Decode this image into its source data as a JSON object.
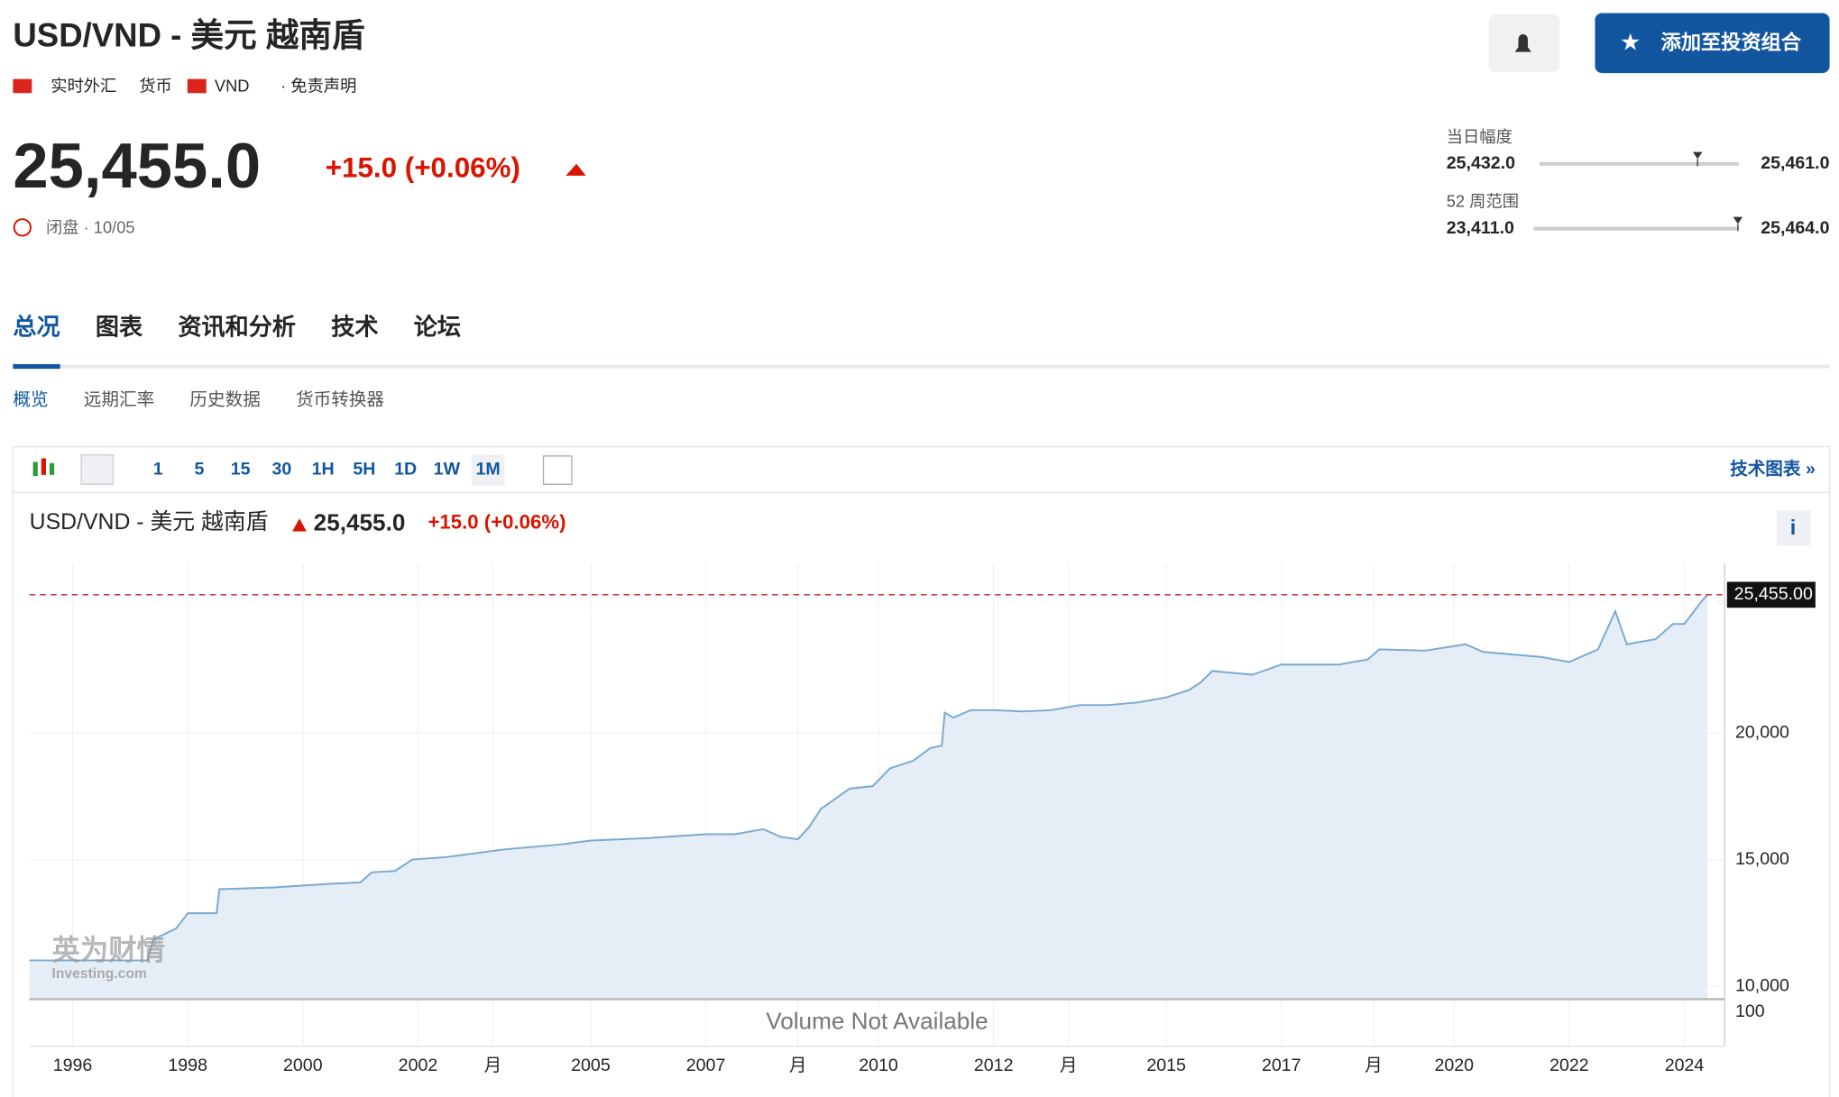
{
  "header": {
    "title": "USD/VND - 美元 越南盾",
    "meta": [
      "实时外汇",
      "货币",
      "VND",
      "· 免责声明"
    ],
    "add_button": "添加至投资组合"
  },
  "quote": {
    "price": {
      "value": 25455,
      "label": "25,455.0"
    },
    "change": "+15.0 (+0.06%)",
    "status": "闭盘 · 10/05"
  },
  "ranges": [
    {
      "label": "当日幅度",
      "low": {
        "value": 25432,
        "label": "25,432.0"
      },
      "high": {
        "value": 25461,
        "label": "25,461.0"
      }
    },
    {
      "label": "52 周范围",
      "low": {
        "value": 23411,
        "label": "23,411.0"
      },
      "high": {
        "value": 25464,
        "label": "25,464.0"
      }
    }
  ],
  "tabs": [
    "总况",
    "图表",
    "资讯和分析",
    "技术",
    "论坛"
  ],
  "subtabs": [
    "概览",
    "远期汇率",
    "历史数据",
    "货币转换器"
  ],
  "toolbar": {
    "intervals": [
      "1",
      "5",
      "15",
      "30",
      "1H",
      "5H",
      "1D",
      "1W",
      "1M"
    ],
    "link": "技术图表 »"
  },
  "chart_data": {
    "type": "line",
    "title": "USD/VND - 美元 越南盾",
    "price": "25,455.0",
    "change": "+15.0 (+0.06%)",
    "last": {
      "value": 25455,
      "label": "25,455.00"
    },
    "volume_tick": "100",
    "volume_note": "Volume Not Available",
    "watermark": [
      "英为财情",
      "Investing.com"
    ],
    "color": "#7aa9d0",
    "x": [
      1995.25,
      1997.3,
      1997.4,
      1997.8,
      1998.0,
      1998.5,
      1998.55,
      1999.5,
      2000.5,
      2001.0,
      2001.2,
      2001.6,
      2001.9,
      2002.5,
      2003.5,
      2004.5,
      2005.0,
      2006.0,
      2007.0,
      2007.5,
      2008.0,
      2008.3,
      2008.6,
      2008.8,
      2009.0,
      2009.5,
      2009.9,
      2010.2,
      2010.6,
      2010.9,
      2011.1,
      2011.15,
      2011.3,
      2011.6,
      2012.0,
      2012.5,
      2013.0,
      2013.5,
      2014.0,
      2014.5,
      2015.0,
      2015.4,
      2015.6,
      2015.8,
      2016.0,
      2016.5,
      2017.0,
      2017.5,
      2018.0,
      2018.5,
      2018.7,
      2019.5,
      2020.2,
      2020.5,
      2021.0,
      2021.5,
      2022.0,
      2022.5,
      2022.8,
      2023.0,
      2023.5,
      2023.8,
      2024.0,
      2024.3,
      2024.4
    ],
    "values": [
      11020,
      11020,
      11850,
      12280,
      12880,
      12880,
      13830,
      13900,
      14050,
      14100,
      14500,
      14550,
      15000,
      15100,
      15400,
      15600,
      15750,
      15850,
      16000,
      16000,
      16200,
      15900,
      15800,
      16300,
      17000,
      17800,
      17900,
      18600,
      18900,
      19400,
      19500,
      20800,
      20600,
      20900,
      20900,
      20850,
      20900,
      21100,
      21100,
      21200,
      21400,
      21700,
      22000,
      22450,
      22400,
      22300,
      22700,
      22700,
      22700,
      22900,
      23300,
      23250,
      23500,
      23200,
      23100,
      23000,
      22800,
      23300,
      24800,
      23500,
      23700,
      24300,
      24300,
      25200,
      25455
    ],
    "xlim": [
      1995.25,
      2024.7
    ],
    "ylim": [
      9490,
      26700
    ],
    "xticks": [
      1996,
      1998,
      2000,
      2002,
      {
        "value": 2003.3,
        "label": "月"
      },
      2005,
      2007,
      {
        "value": 2008.6,
        "label": "月"
      },
      2010,
      2012,
      {
        "value": 2013.3,
        "label": "月"
      },
      2015,
      2017,
      {
        "value": 2018.6,
        "label": "月"
      },
      2020,
      2022,
      2024
    ],
    "yticks": [
      {
        "value": 10000,
        "label": "10,000"
      },
      {
        "value": 15000,
        "label": "15,000"
      },
      {
        "value": 20000,
        "label": "20,000"
      }
    ],
    "grid": true
  }
}
